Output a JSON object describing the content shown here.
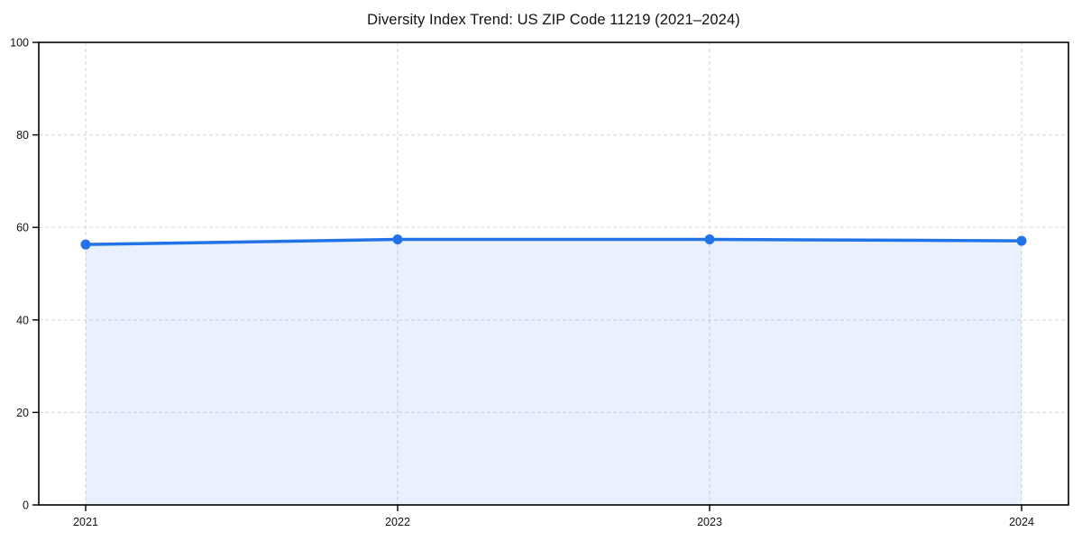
{
  "chart_data": {
    "type": "area",
    "title": "Diversity Index Trend: US ZIP Code 11219 (2021–2024)",
    "categories": [
      "2021",
      "2022",
      "2023",
      "2024"
    ],
    "series": [
      {
        "name": "Diversity Index",
        "values": [
          56.3,
          57.4,
          57.4,
          57.1
        ]
      }
    ],
    "xlabel": "",
    "ylabel": "",
    "ylim": [
      0,
      100
    ],
    "yticks": [
      0,
      20,
      40,
      60,
      80,
      100
    ],
    "grid": true,
    "legend": "none",
    "marker": "circle",
    "colors": {
      "line": "#2273e8",
      "marker": "#2273e8",
      "fill": "#2273e8",
      "fill_opacity": 0.1,
      "grid": "#dddddd",
      "spine": "#000000",
      "tick": "#000000",
      "text": "#111111",
      "background": "#ffffff"
    }
  }
}
